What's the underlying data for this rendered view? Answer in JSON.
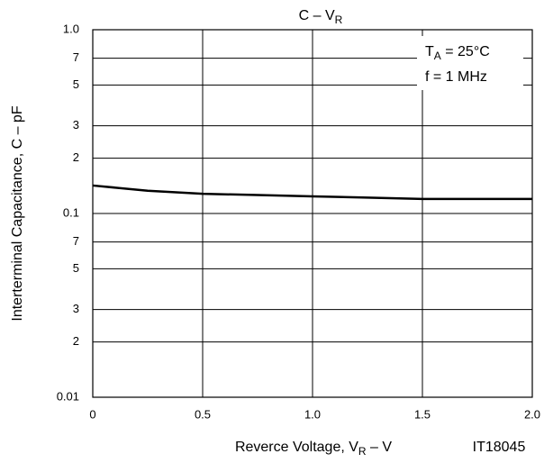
{
  "chart_data": {
    "type": "line",
    "title": [
      "C – V",
      "R"
    ],
    "x_label": [
      "Reverce Voltage, V",
      "R",
      " – V"
    ],
    "y_label": "Interterminal Capacitance, C – pF",
    "annotation": [
      [
        "T",
        "A",
        " = 25°C"
      ],
      "f = 1 MHz"
    ],
    "figure_id": "IT18045",
    "x": [
      0,
      0.25,
      0.5,
      0.75,
      1,
      1.25,
      1.5,
      1.75,
      2
    ],
    "series": [
      {
        "color": "#000000",
        "values": [
          0.142,
          0.133,
          0.128,
          0.126,
          0.124,
          0.122,
          0.12,
          0.12,
          0.12
        ]
      }
    ],
    "xlim": [
      0,
      2
    ],
    "ylim": [
      0.01,
      1
    ],
    "log_y": true,
    "grid": true,
    "xticks": [
      0,
      0.5,
      {
        "value": 1,
        "label": "1.0"
      },
      1.5,
      {
        "value": 2,
        "label": "2.0"
      }
    ],
    "yticks": [
      {
        "value": 1,
        "label": "1.0"
      },
      {
        "value": 0.7,
        "label": "7"
      },
      {
        "value": 0.5,
        "label": "5"
      },
      {
        "value": 0.3,
        "label": "3"
      },
      {
        "value": 0.2,
        "label": "2"
      },
      0.1,
      {
        "value": 0.07,
        "label": "7"
      },
      {
        "value": 0.05,
        "label": "5"
      },
      {
        "value": 0.03,
        "label": "3"
      },
      {
        "value": 0.02,
        "label": "2"
      },
      0.01
    ]
  }
}
